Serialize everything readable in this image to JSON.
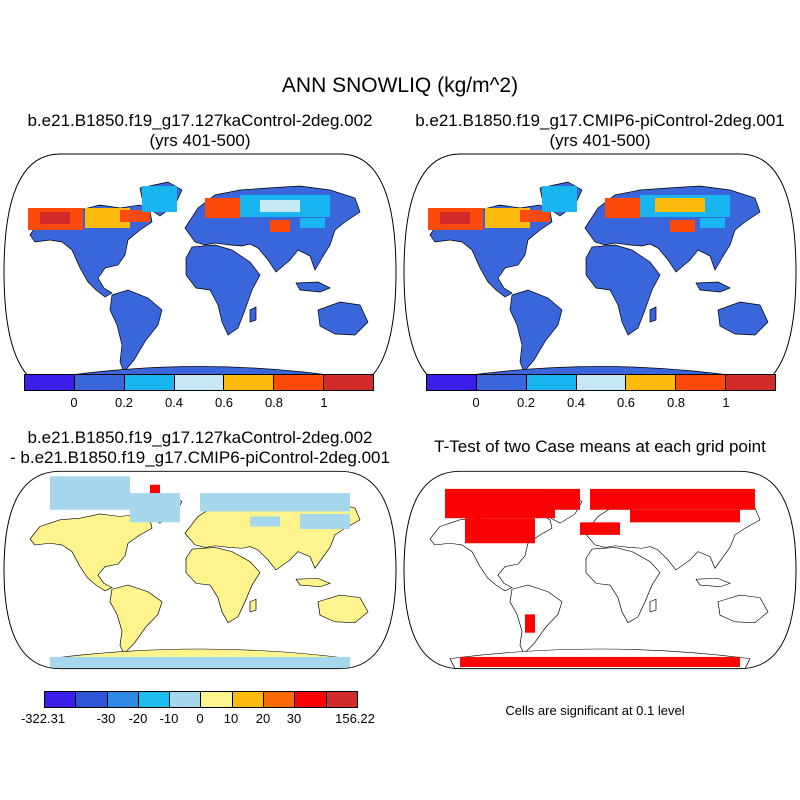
{
  "main_title": "ANN SNOWLIQ (kg/m^2)",
  "panels": {
    "top_left": {
      "title_line1": "b.e21.B1850.f19_g17.127kaControl-2deg.002",
      "title_line2": "(yrs 401-500)"
    },
    "top_right": {
      "title_line1": "b.e21.B1850.f19_g17.CMIP6-piControl-2deg.001",
      "title_line2": "(yrs 401-500)"
    },
    "bottom_left": {
      "title_line1": "b.e21.B1850.f19_g17.127kaControl-2deg.002",
      "title_line2": "- b.e21.B1850.f19_g17.CMIP6-piControl-2deg.001"
    },
    "bottom_right": {
      "title_line1": "T-Test of two Case means at each grid point"
    }
  },
  "colorbars": {
    "field": {
      "colors": [
        "#3a1fe8",
        "#3a66dc",
        "#19b5f0",
        "#c6e8f4",
        "#fdba0d",
        "#fb4a0c",
        "#d22c2a"
      ],
      "labels": [
        "0",
        "0.2",
        "0.4",
        "0.6",
        "0.8",
        "1"
      ]
    },
    "difference": {
      "colors": [
        "#3a1fe8",
        "#2e55d8",
        "#2e8ae4",
        "#1ebdf0",
        "#a6d7ec",
        "#fdf48e",
        "#fdbb0d",
        "#fc6a08",
        "#fb0204",
        "#d22c2a"
      ],
      "labels": [
        "-322.31",
        "-30",
        "-20",
        "-10",
        "0",
        "10",
        "20",
        "30",
        "156.22"
      ]
    }
  },
  "significance_note": "Cells are significant at 0.1 level",
  "legend_note": "Cells are significant at 0.1 level"
}
